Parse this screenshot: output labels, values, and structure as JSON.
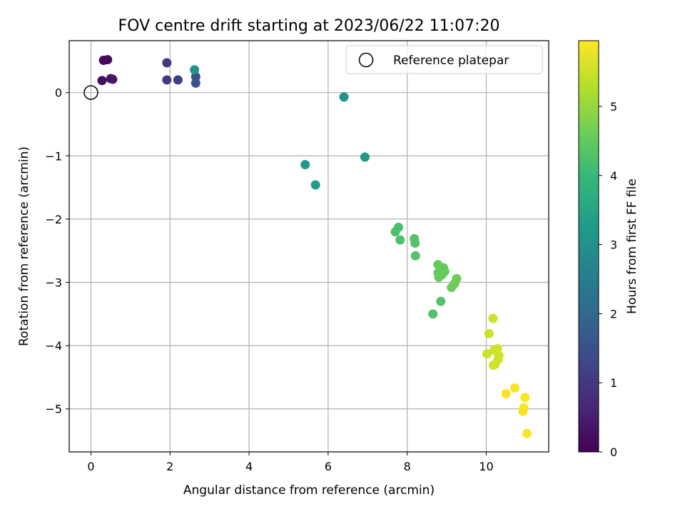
{
  "chart_data": {
    "type": "scatter",
    "title": "FOV centre drift starting at 2023/06/22 11:07:20",
    "xlabel": "Angular distance from reference (arcmin)",
    "ylabel": "Rotation from reference (arcmin)",
    "colorbar_label": "Hours from first FF file",
    "colormap": "viridis",
    "xlim": [
      -0.55,
      11.58
    ],
    "ylim": [
      -5.68,
      0.82
    ],
    "xticks": [
      0,
      2,
      4,
      6,
      8,
      10
    ],
    "xtick_labels": [
      "0",
      "2",
      "4",
      "6",
      "8",
      "10"
    ],
    "yticks": [
      0,
      -1,
      -2,
      -3,
      -4,
      -5
    ],
    "ytick_labels": [
      "0",
      "−1",
      "−2",
      "−3",
      "−4",
      "−5"
    ],
    "clim": [
      0,
      5.95
    ],
    "cticks": [
      0,
      1,
      2,
      3,
      4,
      5
    ],
    "ctick_labels": [
      "0",
      "1",
      "2",
      "3",
      "4",
      "5"
    ],
    "grid": true,
    "legend": {
      "location": "upper right",
      "entries": [
        "Reference platepar"
      ]
    },
    "reference_point": {
      "x": 0,
      "y": 0
    },
    "points": [
      {
        "x": 0.32,
        "y": 0.51,
        "c": 0.1
      },
      {
        "x": 0.42,
        "y": 0.52,
        "c": 0.15
      },
      {
        "x": 0.28,
        "y": 0.19,
        "c": 0.2
      },
      {
        "x": 0.5,
        "y": 0.22,
        "c": 0.3
      },
      {
        "x": 0.55,
        "y": 0.21,
        "c": 0.35
      },
      {
        "x": 1.92,
        "y": 0.47,
        "c": 1.0
      },
      {
        "x": 1.92,
        "y": 0.2,
        "c": 1.05
      },
      {
        "x": 2.2,
        "y": 0.2,
        "c": 1.1
      },
      {
        "x": 2.65,
        "y": 0.25,
        "c": 1.5
      },
      {
        "x": 2.65,
        "y": 0.15,
        "c": 1.55
      },
      {
        "x": 2.62,
        "y": 0.36,
        "c": 3.0
      },
      {
        "x": 6.4,
        "y": -0.07,
        "c": 3.1
      },
      {
        "x": 6.93,
        "y": -1.02,
        "c": 3.15
      },
      {
        "x": 5.42,
        "y": -1.14,
        "c": 3.2
      },
      {
        "x": 5.68,
        "y": -1.46,
        "c": 3.25
      },
      {
        "x": 7.78,
        "y": -2.13,
        "c": 4.2
      },
      {
        "x": 7.7,
        "y": -2.2,
        "c": 4.2
      },
      {
        "x": 7.82,
        "y": -2.33,
        "c": 4.25
      },
      {
        "x": 8.18,
        "y": -2.31,
        "c": 4.3
      },
      {
        "x": 8.2,
        "y": -2.38,
        "c": 4.3
      },
      {
        "x": 8.21,
        "y": -2.58,
        "c": 4.3
      },
      {
        "x": 8.78,
        "y": -2.72,
        "c": 4.5
      },
      {
        "x": 8.78,
        "y": -2.85,
        "c": 4.5
      },
      {
        "x": 8.8,
        "y": -2.92,
        "c": 4.5
      },
      {
        "x": 8.92,
        "y": -2.77,
        "c": 4.55
      },
      {
        "x": 8.95,
        "y": -2.83,
        "c": 4.55
      },
      {
        "x": 8.88,
        "y": -2.88,
        "c": 4.55
      },
      {
        "x": 9.25,
        "y": -2.94,
        "c": 4.6
      },
      {
        "x": 9.2,
        "y": -3.02,
        "c": 4.6
      },
      {
        "x": 9.12,
        "y": -3.08,
        "c": 4.6
      },
      {
        "x": 8.85,
        "y": -3.3,
        "c": 4.3
      },
      {
        "x": 8.65,
        "y": -3.5,
        "c": 4.3
      },
      {
        "x": 10.17,
        "y": -3.57,
        "c": 5.5
      },
      {
        "x": 10.07,
        "y": -3.81,
        "c": 5.5
      },
      {
        "x": 10.02,
        "y": -4.13,
        "c": 5.5
      },
      {
        "x": 10.2,
        "y": -4.07,
        "c": 5.5
      },
      {
        "x": 10.28,
        "y": -4.05,
        "c": 5.55
      },
      {
        "x": 10.32,
        "y": -4.16,
        "c": 5.55
      },
      {
        "x": 10.3,
        "y": -4.22,
        "c": 5.55
      },
      {
        "x": 10.18,
        "y": -4.31,
        "c": 5.55
      },
      {
        "x": 10.22,
        "y": -4.3,
        "c": 5.55
      },
      {
        "x": 10.72,
        "y": -4.67,
        "c": 5.9
      },
      {
        "x": 10.5,
        "y": -4.76,
        "c": 5.9
      },
      {
        "x": 10.98,
        "y": -4.82,
        "c": 5.9
      },
      {
        "x": 10.95,
        "y": -4.98,
        "c": 5.9
      },
      {
        "x": 10.93,
        "y": -5.04,
        "c": 5.9
      },
      {
        "x": 11.03,
        "y": -5.39,
        "c": 5.9
      }
    ]
  },
  "colors": {
    "grid": "#b0b0b0",
    "axes": "#000000",
    "background": "#ffffff",
    "viridis_stops": [
      "#440154",
      "#482878",
      "#3e4989",
      "#31688e",
      "#26828e",
      "#1f9e89",
      "#35b779",
      "#6ece58",
      "#b5de2b",
      "#fde725"
    ]
  }
}
